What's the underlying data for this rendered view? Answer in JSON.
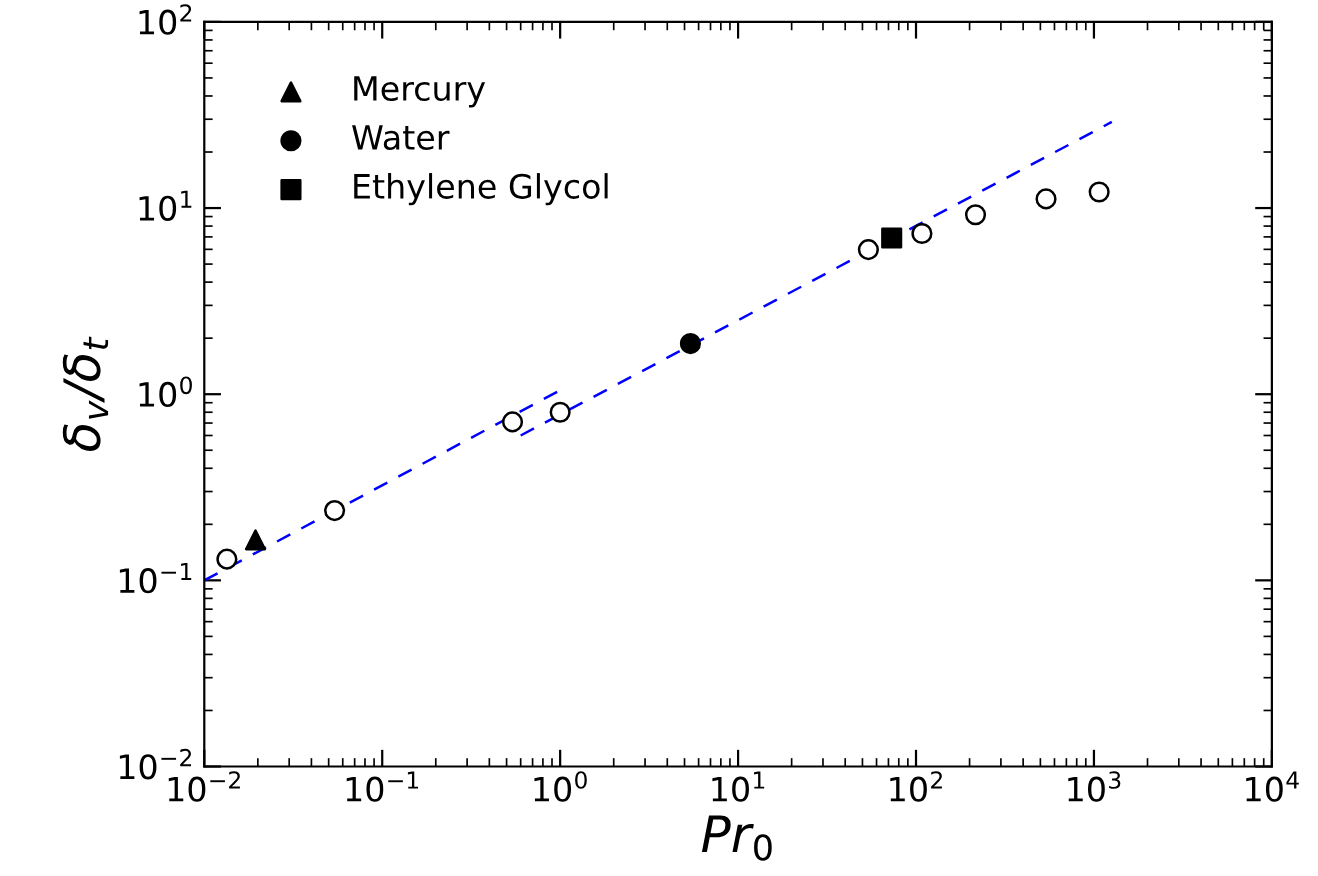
{
  "chart_data": {
    "type": "scatter",
    "xlabel": "Pr$_{0}$",
    "ylabel": "δ$_{v}$/δ$_{t}$",
    "log": "xy",
    "grid": false,
    "legend": "top left",
    "xlim": [
      0.01,
      10000
    ],
    "ylim": [
      0.01,
      100
    ],
    "xticks": [
      {
        "value": 0.01,
        "label": "10$^{−2}$"
      },
      {
        "value": 0.1,
        "label": "10$^{−1}$"
      },
      {
        "value": 1,
        "label": "10$^{0}$"
      },
      {
        "value": 10,
        "label": "10$^{1}$"
      },
      {
        "value": 100,
        "label": "10$^{2}$"
      },
      {
        "value": 1000,
        "label": "10$^{3}$"
      },
      {
        "value": 10000,
        "label": "10$^{4}$"
      }
    ],
    "yticks": [
      {
        "value": 0.01,
        "label": "10$^{−2}$"
      },
      {
        "value": 0.1,
        "label": "10$^{−1}$"
      },
      {
        "value": 1,
        "label": "10$^{0}$"
      },
      {
        "value": 10,
        "label": "10$^{1}$"
      },
      {
        "value": 100,
        "label": "10$^{2}$"
      }
    ],
    "series": [
      {
        "type": "line",
        "color": "#0000ff",
        "line_style": "dashed",
        "marker": "none",
        "x": [
          0.01,
          1.0
        ],
        "values": [
          0.1,
          1.05
        ]
      },
      {
        "type": "line",
        "color": "#0000ff",
        "line_style": "dashed",
        "marker": "none",
        "x": [
          0.6,
          1260
        ],
        "values": [
          0.6,
          29
        ]
      },
      {
        "color": "#ffffff",
        "marker": "circle",
        "x": [
          0.0134,
          0.054,
          0.54,
          1.0,
          54,
          108,
          216,
          538,
          1070
        ],
        "values": [
          0.13,
          0.237,
          0.71,
          0.8,
          5.98,
          7.3,
          9.2,
          11.2,
          12.2
        ]
      },
      {
        "name": "Mercury",
        "color": "#000000",
        "marker": "triangle",
        "x": [
          0.0194
        ],
        "values": [
          0.165
        ]
      },
      {
        "name": "Water",
        "color": "#000000",
        "marker": "circle",
        "x": [
          5.4
        ],
        "values": [
          1.87
        ]
      },
      {
        "name": "Ethylene Glycol",
        "color": "#000000",
        "marker": "square",
        "x": [
          73
        ],
        "values": [
          6.9
        ]
      }
    ]
  }
}
